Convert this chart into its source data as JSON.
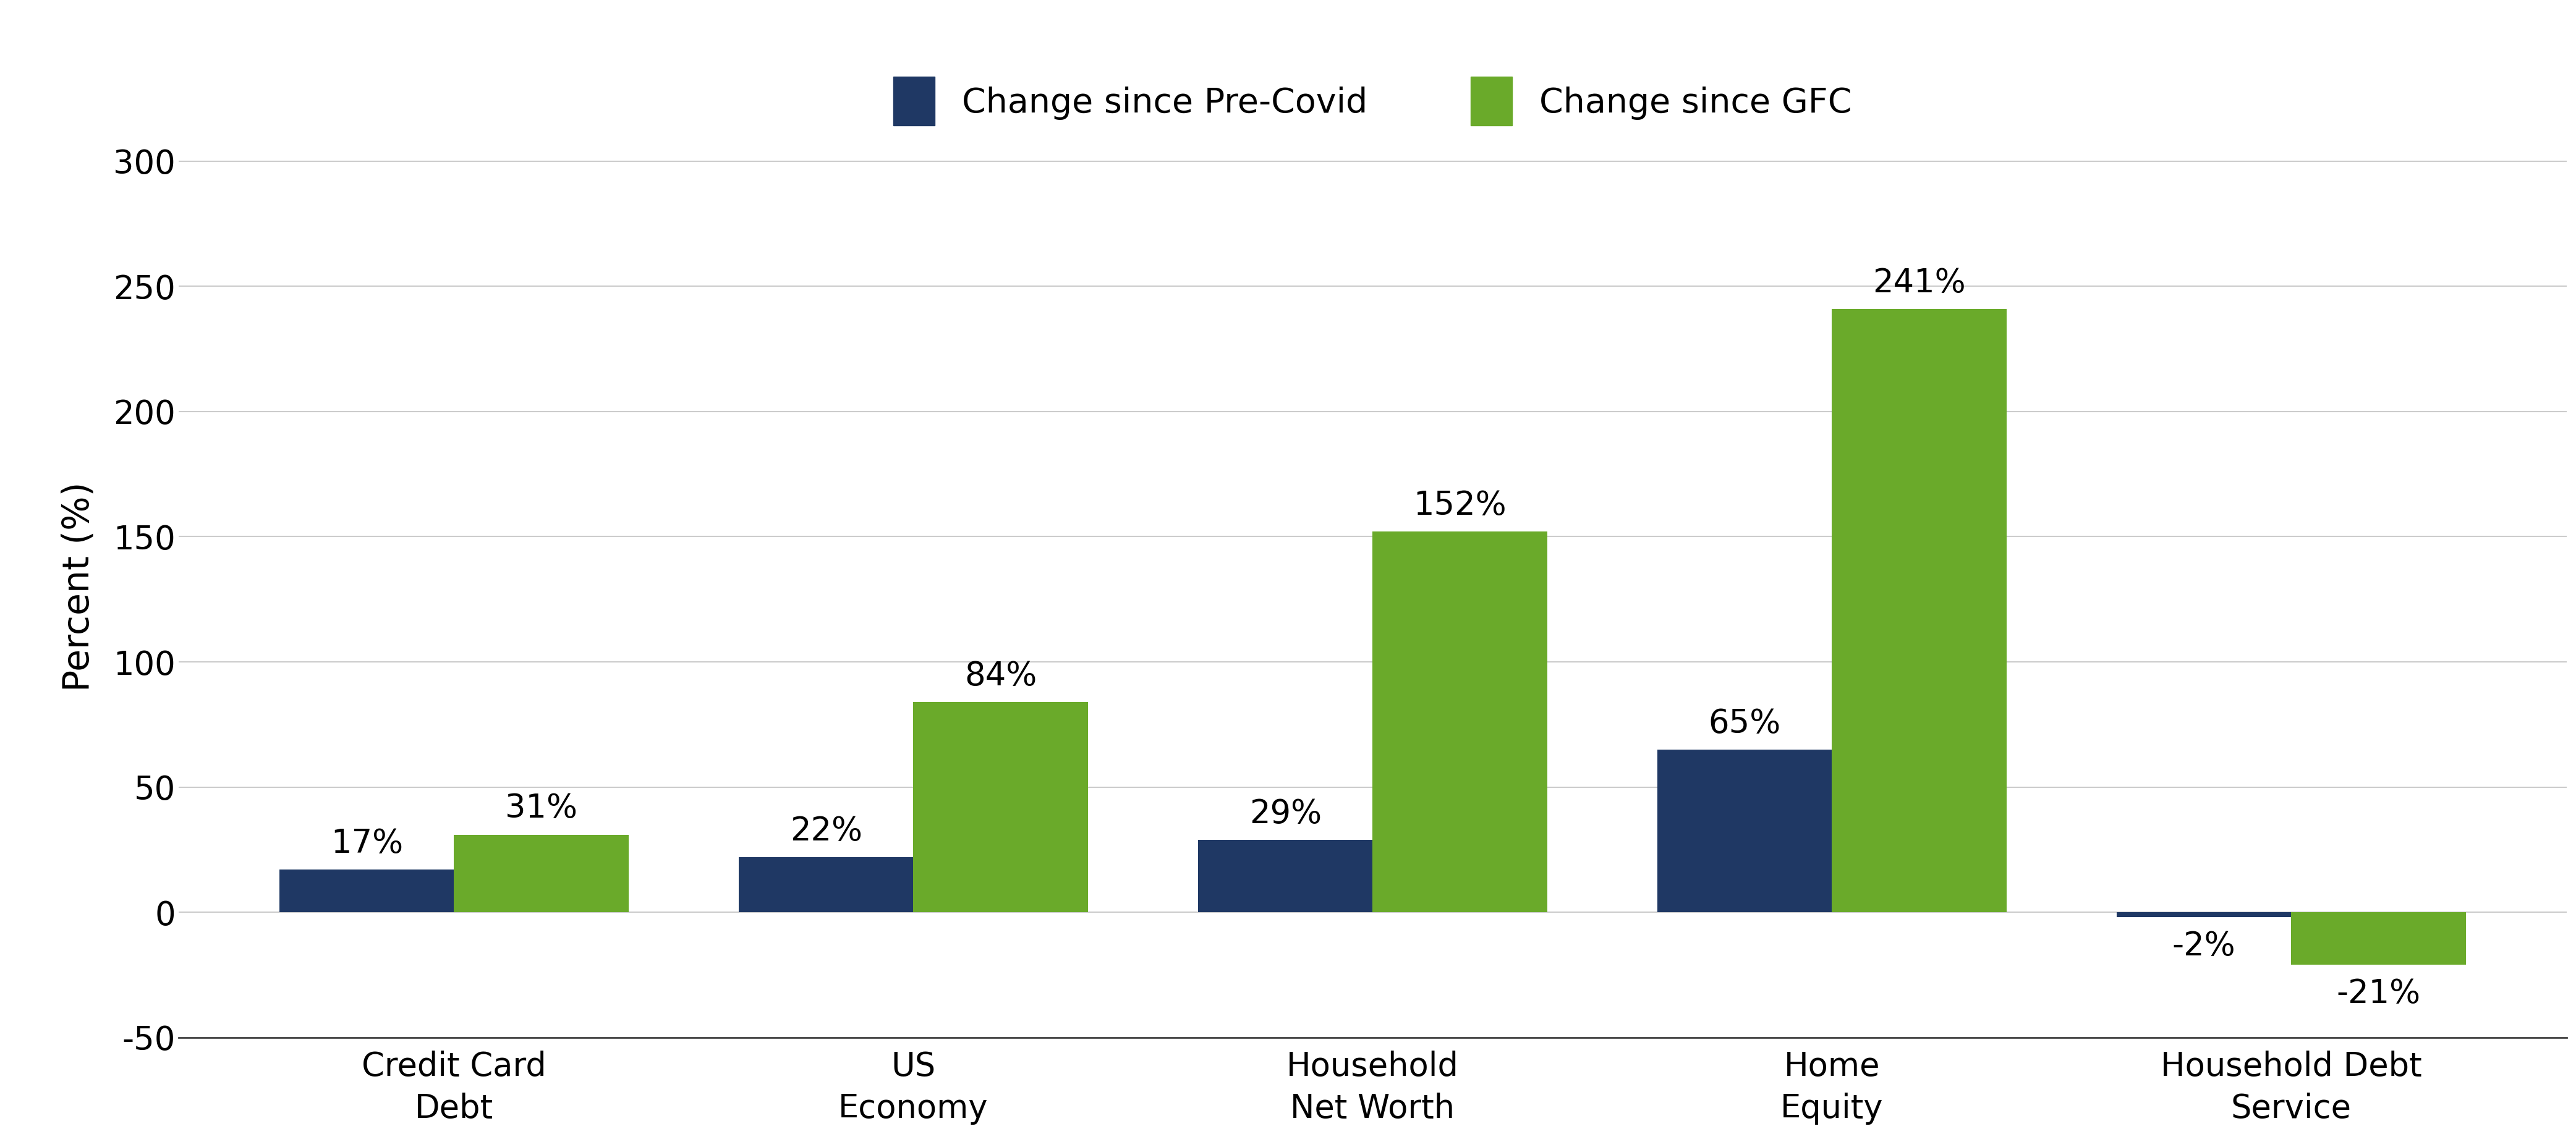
{
  "categories": [
    "Credit Card\nDebt",
    "US\nEconomy",
    "Household\nNet Worth",
    "Home\nEquity",
    "Household Debt\nService"
  ],
  "pre_covid": [
    17,
    22,
    29,
    65,
    -2
  ],
  "gfc": [
    31,
    84,
    152,
    241,
    -21
  ],
  "pre_covid_color": "#1f3864",
  "gfc_color": "#6aaa2a",
  "ylabel": "Percent (%)",
  "ylim": [
    -50,
    310
  ],
  "yticks": [
    -50,
    0,
    50,
    100,
    150,
    200,
    250,
    300
  ],
  "legend_labels": [
    "Change since Pre-Covid",
    "Change since GFC"
  ],
  "bar_width": 0.38,
  "label_fontsize": 42,
  "tick_fontsize": 38,
  "legend_fontsize": 40,
  "annotation_fontsize": 38,
  "xtick_fontsize": 38,
  "background_color": "#ffffff",
  "grid_color": "#cccccc"
}
